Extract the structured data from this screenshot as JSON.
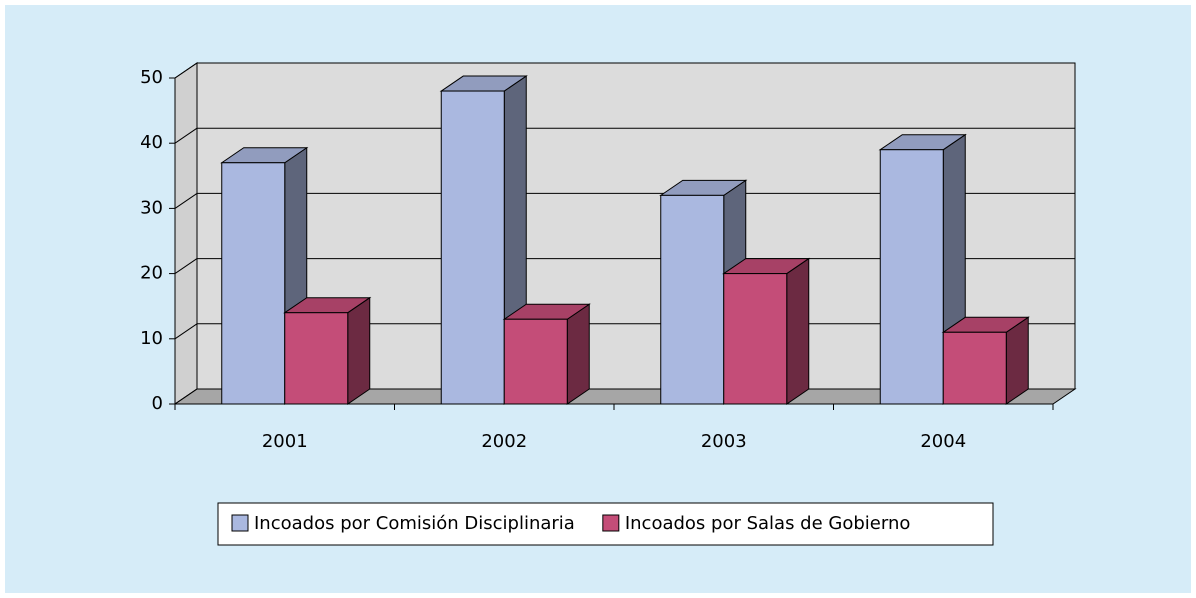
{
  "chart_data": {
    "type": "bar3d",
    "categories": [
      "2001",
      "2002",
      "2003",
      "2004"
    ],
    "series": [
      {
        "name": "Incoados por Comisión Disciplinaria",
        "color": "#aab8e0",
        "values": [
          37,
          48,
          32,
          39
        ]
      },
      {
        "name": "Incoados por Salas de Gobierno",
        "color": "#c44d78",
        "values": [
          14,
          13,
          20,
          11
        ]
      }
    ],
    "ylim": [
      0,
      50
    ],
    "yticks": [
      0,
      10,
      20,
      30,
      40,
      50
    ],
    "grid": true,
    "legend": "bottom"
  }
}
